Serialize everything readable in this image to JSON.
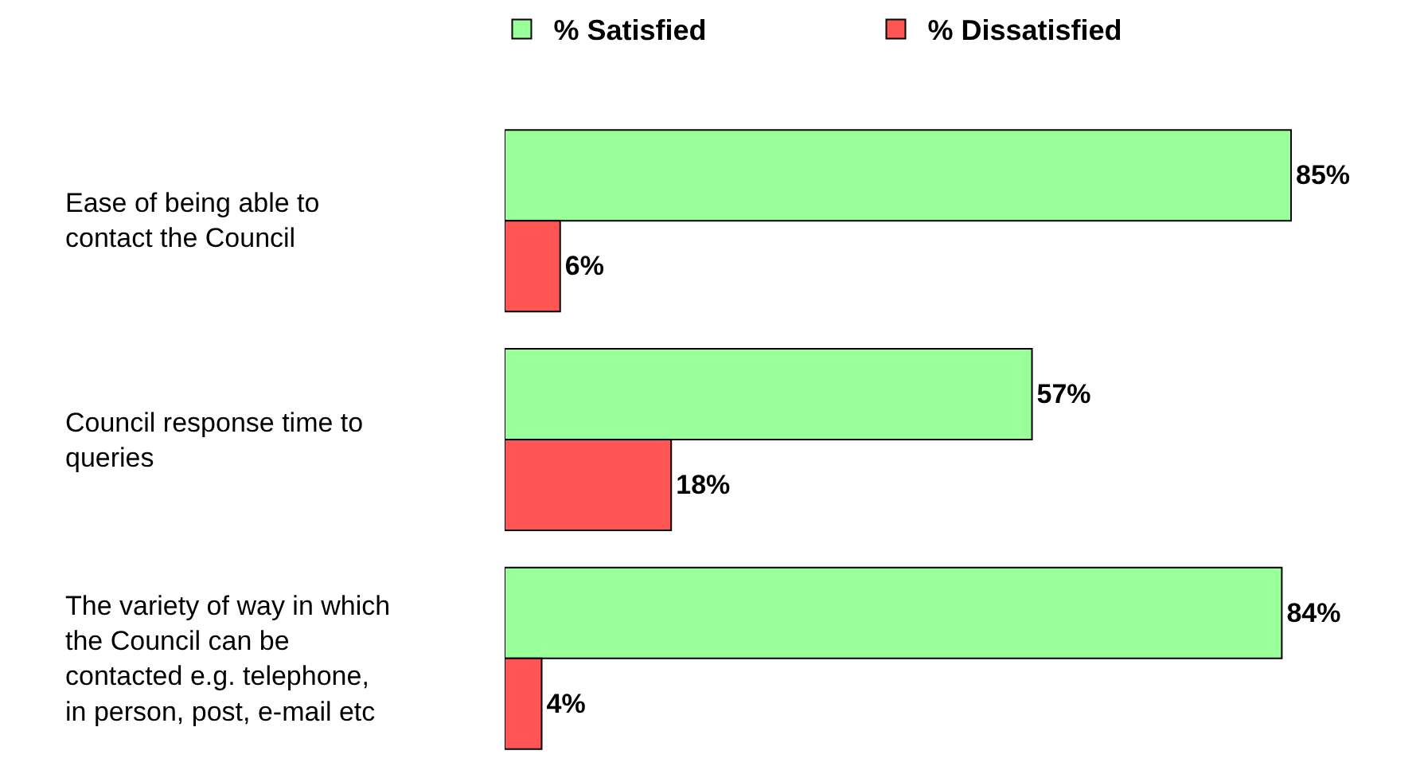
{
  "chart_data": {
    "type": "bar",
    "orientation": "horizontal",
    "categories": [
      "Ease of being able to contact the Council",
      "Council response time to queries",
      "The variety of way in which the Council can be contacted e.g. telephone, in person, post, e-mail etc"
    ],
    "series": [
      {
        "name": "% Satisfied",
        "color": "#99ff99",
        "values": [
          85,
          57,
          84
        ],
        "value_labels": [
          "85%",
          "57%",
          "84%"
        ]
      },
      {
        "name": "% Dissatisfied",
        "color": "#ff5555",
        "values": [
          6,
          18,
          4
        ],
        "value_labels": [
          "6%",
          "18%",
          "4%"
        ]
      }
    ],
    "tick_labels": "y",
    "legend": "top"
  }
}
